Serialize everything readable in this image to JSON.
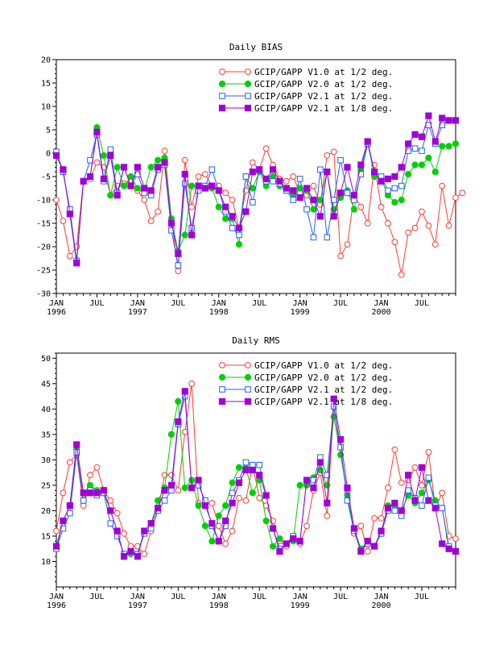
{
  "colors": {
    "v10": "#ff3b30",
    "v20": "#00d000",
    "v21h": "#2060ff",
    "v21e": "#a000d8"
  },
  "chart_data": [
    {
      "type": "line",
      "title": "Daily BIAS",
      "xlabel": "",
      "ylabel": "",
      "ylim": [
        -30,
        20
      ],
      "yticks": [
        -30,
        -25,
        -20,
        -15,
        -10,
        -5,
        0,
        5,
        10,
        15,
        20
      ],
      "xlim": [
        0,
        59
      ],
      "xticks": [
        {
          "x": 0,
          "month": "JAN",
          "year": "1996"
        },
        {
          "x": 6,
          "month": "JUL",
          "year": ""
        },
        {
          "x": 12,
          "month": "JAN",
          "year": "1997"
        },
        {
          "x": 18,
          "month": "JUL",
          "year": ""
        },
        {
          "x": 24,
          "month": "JAN",
          "year": "1998"
        },
        {
          "x": 30,
          "month": "JUL",
          "year": ""
        },
        {
          "x": 36,
          "month": "JAN",
          "year": "1999"
        },
        {
          "x": 42,
          "month": "JUL",
          "year": ""
        },
        {
          "x": 48,
          "month": "JAN",
          "year": "2000"
        },
        {
          "x": 54,
          "month": "JUL",
          "year": ""
        }
      ],
      "legend_position": "top-right",
      "series": [
        {
          "name": "GCIP/GAPP V1.0 at 1/2 deg.",
          "marker": "open-circle",
          "color_key": "v10",
          "values": [
            -10,
            -14.5,
            -22,
            -20,
            -6,
            -5.5,
            -2,
            -3,
            -9,
            -7,
            -6.5,
            -6,
            -8,
            -10,
            -14.5,
            -12.5,
            0.5,
            -14,
            -25.2,
            -1.5,
            -11.5,
            -5,
            -4.5,
            -7,
            -7,
            -8.5,
            -10,
            -16,
            -8,
            -2,
            -3.5,
            1,
            -2.5,
            -5.5,
            -6,
            -5,
            -8.5,
            -9,
            -7,
            -11,
            -0.5,
            0.3,
            -22,
            -19.5,
            -9,
            -11.5,
            -15,
            -2.5,
            -11.5,
            -15,
            -19,
            -26,
            -17,
            -16,
            -12.5,
            -15.5,
            -19.5,
            -7,
            -15.5,
            -9.5,
            -8.5
          ]
        },
        {
          "name": "GCIP/GAPP V2.0 at 1/2 deg.",
          "marker": "filled-circle",
          "color_key": "v20",
          "values": [
            -0.5,
            -4,
            -12.5,
            -23,
            -6,
            -5,
            5.5,
            -0.5,
            -9,
            -3,
            -7,
            -5,
            -7.5,
            -8,
            -3,
            -1.5,
            -1,
            -14,
            -21,
            -17.5,
            -7,
            -7,
            -7,
            -7.5,
            -11.5,
            -14,
            -14,
            -19.5,
            -5,
            -7.5,
            -4,
            -7,
            -5,
            -7,
            -8,
            -9,
            -7.5,
            -8,
            -12,
            -10,
            -4,
            -12,
            -9.5,
            -8,
            -12,
            -3.5,
            2.5,
            -5,
            -5.5,
            -9,
            -10.5,
            -10,
            -4.5,
            -2.5,
            -2.5,
            -1,
            -4,
            1.5,
            1.5,
            2
          ]
        },
        {
          "name": "GCIP/GAPP V2.1 at 1/2 deg.",
          "marker": "open-square",
          "color_key": "v21h",
          "values": [
            0.3,
            -4,
            -12,
            -23,
            -6,
            -1.5,
            4,
            -6,
            0.8,
            -8.5,
            -3,
            -7,
            -4.5,
            -8.5,
            -9,
            -3.5,
            -2.5,
            -16.5,
            -24,
            -6.5,
            -16,
            -8,
            -7,
            -3.5,
            -8,
            -12.5,
            -16,
            -17.5,
            -5,
            -10.5,
            -3.5,
            -6,
            -6,
            -6.5,
            -8,
            -10,
            -5.5,
            -12,
            -18,
            -3.5,
            -18,
            -10,
            -1.5,
            -8.5,
            -10,
            -4.5,
            2,
            -4,
            -5,
            -8,
            -7.5,
            -7,
            0.5,
            1,
            0.5,
            6,
            2,
            6,
            7,
            7
          ]
        },
        {
          "name": "GCIP/GAPP V2.1 at 1/8 deg.",
          "marker": "filled-square",
          "color_key": "v21e",
          "values": [
            -0.5,
            -3.5,
            -13,
            -23.5,
            -6,
            -5,
            4.5,
            -5.5,
            -0.5,
            -9,
            -3,
            -7,
            -3,
            -7.5,
            -8,
            -3,
            -2,
            -15,
            -21.5,
            -4.5,
            -17.5,
            -7,
            -7.5,
            -7,
            -8,
            -11.5,
            -13.5,
            -16,
            -12.5,
            -4,
            -3.5,
            -5.5,
            -3.5,
            -6,
            -7.5,
            -8,
            -9.5,
            -7.5,
            -10,
            -13.5,
            -4,
            -13.5,
            -8.5,
            -3,
            -9,
            -2.5,
            2.5,
            -4,
            -6,
            -5.5,
            -5,
            -3,
            2,
            4,
            3.5,
            8,
            2.5,
            7.5,
            7,
            7
          ]
        }
      ]
    },
    {
      "type": "line",
      "title": "Daily RMS",
      "xlabel": "",
      "ylabel": "",
      "ylim": [
        5,
        51
      ],
      "yticks": [
        10,
        15,
        20,
        25,
        30,
        35,
        40,
        45,
        50
      ],
      "xlim": [
        0,
        59
      ],
      "xticks": [
        {
          "x": 0,
          "month": "JAN",
          "year": "1996"
        },
        {
          "x": 6,
          "month": "JUL",
          "year": ""
        },
        {
          "x": 12,
          "month": "JAN",
          "year": "1997"
        },
        {
          "x": 18,
          "month": "JUL",
          "year": ""
        },
        {
          "x": 24,
          "month": "JAN",
          "year": "1998"
        },
        {
          "x": 30,
          "month": "JUL",
          "year": ""
        },
        {
          "x": 36,
          "month": "JAN",
          "year": "1999"
        },
        {
          "x": 42,
          "month": "JUL",
          "year": ""
        },
        {
          "x": 48,
          "month": "JAN",
          "year": "2000"
        },
        {
          "x": 54,
          "month": "JUL",
          "year": ""
        }
      ],
      "legend_position": "top-right",
      "series": [
        {
          "name": "GCIP/GAPP V1.0 at 1/2 deg.",
          "marker": "open-circle",
          "color_key": "v10",
          "values": [
            16,
            23.5,
            29.5,
            31,
            21,
            27,
            28.5,
            24,
            22,
            19.5,
            15.5,
            13,
            13,
            11.5,
            16,
            20,
            27,
            27,
            24,
            35.5,
            45,
            21.5,
            21.5,
            21.5,
            17,
            13.5,
            16,
            22.5,
            22,
            29,
            22.5,
            21,
            18,
            14,
            13,
            14.5,
            13.5,
            17,
            24,
            27.5,
            19,
            40.5,
            31,
            23.5,
            15.5,
            17,
            12,
            18.5,
            18.5,
            24.5,
            32,
            25.5,
            26,
            28.5,
            25,
            31.5,
            20.5,
            23.5,
            15,
            14.5
          ]
        },
        {
          "name": "GCIP/GAPP V2.0 at 1/2 deg.",
          "marker": "filled-circle",
          "color_key": "v20",
          "values": [
            12.5,
            18,
            21,
            32,
            22,
            25,
            24,
            23.5,
            20,
            16,
            11,
            11.5,
            11.5,
            16,
            17.5,
            22,
            24.5,
            35,
            41.5,
            24.5,
            26,
            21,
            17,
            14,
            19,
            21,
            25.5,
            28.5,
            28.5,
            23.5,
            26,
            18,
            13,
            14.5,
            13.5,
            14,
            25,
            25,
            26.5,
            28,
            25,
            38.5,
            31,
            23,
            16.5,
            12.5,
            14,
            13,
            15.5,
            21,
            21,
            20,
            23,
            21.5,
            23.5,
            26,
            22,
            20.5,
            12.5,
            12
          ]
        },
        {
          "name": "GCIP/GAPP V2.1 at 1/2 deg.",
          "marker": "open-square",
          "color_key": "v21h",
          "values": [
            12.5,
            16.5,
            19.5,
            31.5,
            22,
            24,
            23,
            23.5,
            17.5,
            15,
            11.5,
            12,
            11.5,
            15.5,
            16.5,
            20,
            22,
            24,
            37,
            42.5,
            24.5,
            25,
            22,
            17,
            14,
            17,
            23.5,
            26,
            29.5,
            29,
            29,
            23,
            16.5,
            12.5,
            13.5,
            15,
            14,
            26,
            26,
            30.5,
            27,
            40.5,
            32.5,
            22,
            16,
            12,
            13.5,
            13,
            15.5,
            20,
            20,
            19,
            24,
            22.5,
            21,
            26.5,
            21,
            20.5,
            13,
            12
          ]
        },
        {
          "name": "GCIP/GAPP V2.1 at 1/8 deg.",
          "marker": "filled-square",
          "color_key": "v21e",
          "values": [
            13,
            18,
            21,
            33,
            23.5,
            23.5,
            23.5,
            24,
            20,
            16,
            11,
            12,
            11,
            16,
            17.5,
            20.5,
            24,
            25,
            37.5,
            43.5,
            24.5,
            26,
            21,
            17.5,
            14,
            18,
            21.5,
            25.5,
            28,
            28,
            27,
            23,
            16.5,
            12,
            13.5,
            14.5,
            14,
            26,
            24.5,
            29.5,
            21.5,
            42,
            34,
            24.5,
            16.5,
            12,
            14,
            13,
            16,
            20.5,
            21.5,
            20,
            27,
            22,
            28.5,
            22,
            20.5,
            13.5,
            12.5,
            12
          ]
        }
      ]
    }
  ]
}
